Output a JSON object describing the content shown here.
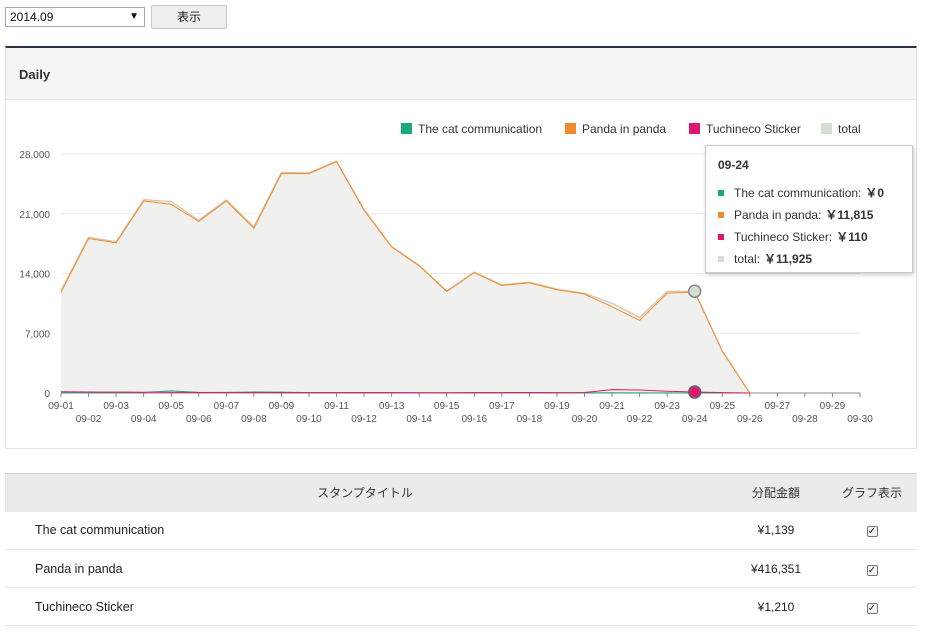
{
  "controls": {
    "month_value": "2014.09",
    "show_label": "表示"
  },
  "panel": {
    "title": "Daily"
  },
  "colors": {
    "cat": "#1aa97a",
    "panda": "#f08c2e",
    "tuchineco": "#e2156f",
    "total": "#d6ddd5",
    "total_line": "#d9c3a8"
  },
  "chart_data": {
    "type": "area",
    "x": [
      "09-01",
      "09-02",
      "09-03",
      "09-04",
      "09-05",
      "09-06",
      "09-07",
      "09-08",
      "09-09",
      "09-10",
      "09-11",
      "09-12",
      "09-13",
      "09-14",
      "09-15",
      "09-16",
      "09-17",
      "09-18",
      "09-19",
      "09-20",
      "09-21",
      "09-22",
      "09-23",
      "09-24",
      "09-25",
      "09-26",
      "09-27",
      "09-28",
      "09-29",
      "09-30"
    ],
    "series": [
      {
        "name": "The cat communication",
        "color": "#1aa97a",
        "values": [
          50,
          40,
          30,
          60,
          250,
          80,
          60,
          120,
          100,
          50,
          40,
          60,
          40,
          30,
          20,
          40,
          30,
          30,
          20,
          20,
          30,
          20,
          10,
          0,
          0,
          0,
          null,
          null,
          null,
          null
        ]
      },
      {
        "name": "Panda in panda",
        "color": "#f08c2e",
        "values": [
          11800,
          18100,
          17600,
          22500,
          22100,
          20100,
          22500,
          19300,
          25700,
          25700,
          27100,
          21400,
          17100,
          14900,
          11900,
          14100,
          12600,
          12900,
          12100,
          11600,
          10100,
          8500,
          11700,
          11815,
          4900,
          0,
          null,
          null,
          null,
          null
        ]
      },
      {
        "name": "Tuchineco Sticker",
        "color": "#e2156f",
        "values": [
          150,
          120,
          100,
          90,
          80,
          60,
          70,
          60,
          50,
          40,
          40,
          50,
          40,
          30,
          30,
          40,
          50,
          60,
          50,
          60,
          400,
          350,
          200,
          110,
          40,
          0,
          null,
          null,
          null,
          null
        ]
      },
      {
        "name": "total",
        "color": "#d6ddd5",
        "values": [
          12000,
          18260,
          17730,
          22650,
          22430,
          20240,
          22630,
          19480,
          25850,
          25790,
          27180,
          21510,
          17180,
          14960,
          11950,
          14180,
          12680,
          12990,
          12170,
          11680,
          10530,
          8870,
          11910,
          11925,
          4940,
          0,
          null,
          null,
          null,
          null
        ]
      }
    ],
    "ylim": [
      0,
      28000
    ],
    "yticks": [
      "0",
      "7,000",
      "14,000",
      "21,000",
      "28,000"
    ],
    "ytick_values": [
      0,
      7000,
      14000,
      21000,
      28000
    ],
    "grid": true,
    "legend": "top-right",
    "highlight_index": 23
  },
  "tooltip": {
    "date": "09-24",
    "rows": [
      {
        "label": "The cat communication:",
        "value": "￥0",
        "color": "#1aa97a"
      },
      {
        "label": "Panda in panda:",
        "value": "￥11,815",
        "color": "#f08c2e"
      },
      {
        "label": "Tuchineco Sticker:",
        "value": "￥110",
        "color": "#e2156f"
      },
      {
        "label": "total:",
        "value": "￥11,925",
        "color": "#d6ddd5"
      }
    ]
  },
  "table": {
    "headers": [
      "スタンプタイトル",
      "分配金額",
      "グラフ表示"
    ],
    "rows": [
      {
        "title": "The cat communication",
        "amount": "¥1,139",
        "checked": true
      },
      {
        "title": "Panda in panda",
        "amount": "¥416,351",
        "checked": true
      },
      {
        "title": "Tuchineco Sticker",
        "amount": "¥1,210",
        "checked": true
      }
    ]
  }
}
